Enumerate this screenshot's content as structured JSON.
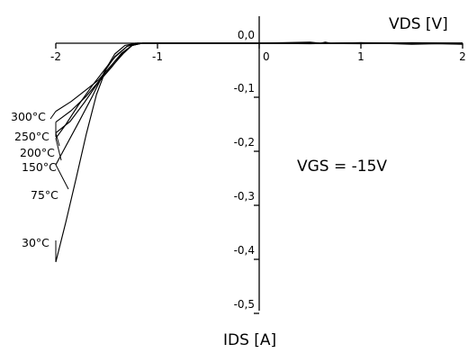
{
  "chart_data": {
    "type": "line",
    "xlabel": "VDS [V]",
    "ylabel": "IDS [A]",
    "xlim": [
      -2,
      2
    ],
    "ylim": [
      -0.5,
      0.0
    ],
    "x_ticks": [
      "-2",
      "-1",
      "0",
      "1",
      "2"
    ],
    "y_ticks": [
      "0,0",
      "-0,1",
      "-0,2",
      "-0,3",
      "-0,4",
      "-0,5"
    ],
    "annotation": "VGS = -15V",
    "series": [
      {
        "name": "300°C",
        "x": [
          -2.0,
          -1.85,
          -1.7,
          -1.58,
          -1.45,
          -1.35,
          -1.25,
          -1.15,
          -1.0,
          0.0,
          0.5,
          0.6,
          0.65,
          0.7,
          1.0,
          1.5,
          2.0
        ],
        "y": [
          -0.126,
          -0.108,
          -0.086,
          -0.068,
          -0.04,
          -0.018,
          -0.004,
          0.0,
          0.0,
          0.0,
          0.002,
          0.0,
          0.002,
          0.0,
          0.001,
          -0.002,
          0.0
        ]
      },
      {
        "name": "250°C",
        "x": [
          -2.0,
          -1.85,
          -1.7,
          -1.58,
          -1.45,
          -1.33,
          -1.25,
          -1.15,
          -1.0,
          0.0,
          0.5,
          1.0,
          1.5,
          2.0
        ],
        "y": [
          -0.146,
          -0.125,
          -0.098,
          -0.071,
          -0.043,
          -0.018,
          -0.004,
          0.0,
          0.0,
          0.0,
          -0.001,
          0.001,
          0.0,
          -0.002
        ]
      },
      {
        "name": "200°C",
        "x": [
          -2.0,
          -1.86,
          -1.72,
          -1.58,
          -1.45,
          -1.35,
          -1.25,
          -1.15,
          -1.0,
          0.0,
          0.5,
          1.0,
          1.5,
          2.0
        ],
        "y": [
          -0.166,
          -0.145,
          -0.11,
          -0.072,
          -0.044,
          -0.02,
          -0.004,
          0.0,
          0.0,
          0.0,
          0.0,
          -0.001,
          0.001,
          0.0
        ]
      },
      {
        "name": "150°C",
        "x": [
          -2.0,
          -1.9,
          -1.78,
          -1.64,
          -1.5,
          -1.42,
          -1.3,
          -1.2,
          -1.0,
          0.0,
          1.0,
          2.0
        ],
        "y": [
          -0.176,
          -0.15,
          -0.115,
          -0.078,
          -0.044,
          -0.026,
          -0.006,
          0.0,
          0.0,
          0.0,
          0.0,
          0.0
        ]
      },
      {
        "name": "75°C",
        "x": [
          -2.0,
          -1.9,
          -1.78,
          -1.64,
          -1.52,
          -1.42,
          -1.3,
          -1.22,
          -1.0,
          0.0,
          1.0,
          2.0
        ],
        "y": [
          -0.225,
          -0.19,
          -0.148,
          -0.098,
          -0.052,
          -0.025,
          -0.006,
          0.0,
          0.0,
          0.0,
          0.0,
          0.0
        ]
      },
      {
        "name": "30°C",
        "x": [
          -2.0,
          -1.9,
          -1.8,
          -1.7,
          -1.6,
          -1.5,
          -1.42,
          -1.32,
          -1.2,
          -1.0,
          0.0,
          1.0,
          2.0
        ],
        "y": [
          -0.405,
          -0.33,
          -0.25,
          -0.168,
          -0.095,
          -0.045,
          -0.02,
          -0.004,
          0.0,
          0.0,
          0.0,
          0.0,
          0.0
        ]
      }
    ]
  }
}
